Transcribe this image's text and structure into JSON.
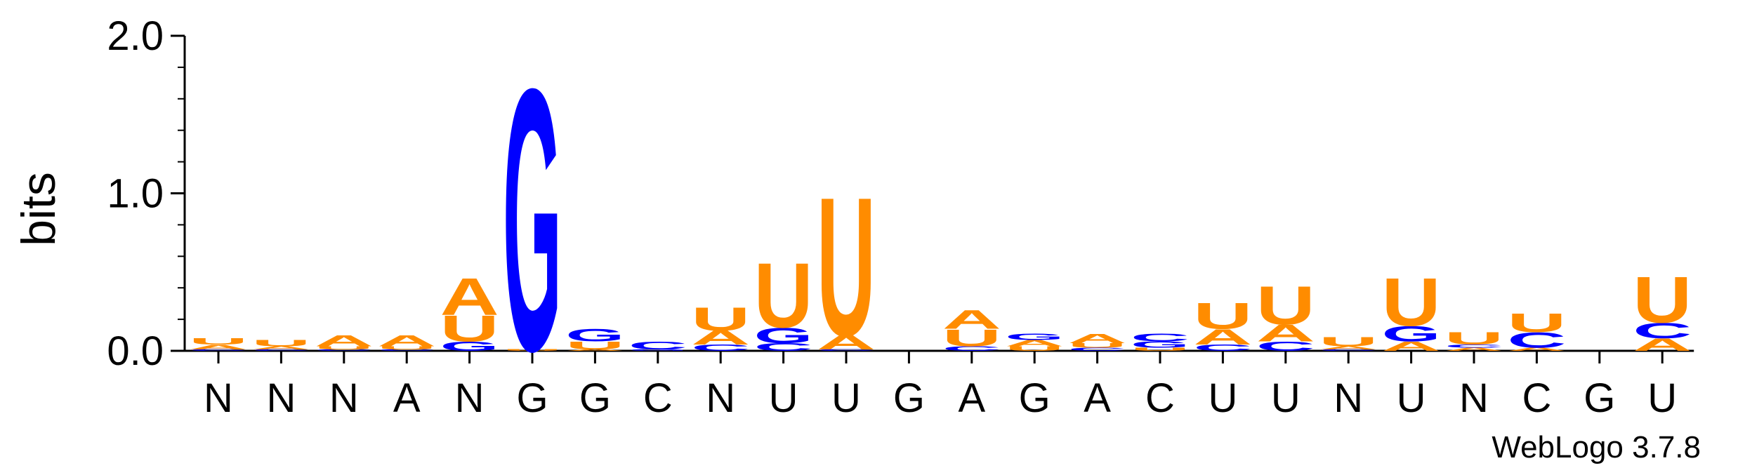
{
  "chart_data": {
    "type": "sequence-logo",
    "ylabel": "bits",
    "ylim": [
      0,
      2.0
    ],
    "yticks": [
      {
        "value": 0.0,
        "label": "0.0"
      },
      {
        "value": 1.0,
        "label": "1.0"
      },
      {
        "value": 2.0,
        "label": "2.0"
      }
    ],
    "x_labels": [
      "N",
      "N",
      "N",
      "A",
      "N",
      "G",
      "G",
      "C",
      "N",
      "U",
      "U",
      "G",
      "A",
      "G",
      "A",
      "C",
      "U",
      "U",
      "N",
      "U",
      "N",
      "C",
      "G",
      "U"
    ],
    "colors": {
      "A": "#FF8C00",
      "U": "#FF8C00",
      "G": "#0000FF",
      "C": "#0000FF"
    },
    "positions": [
      {
        "pos": 1,
        "stack": [
          {
            "letter": "U",
            "height": 0.04
          },
          {
            "letter": "A",
            "height": 0.03
          },
          {
            "letter": "C",
            "height": 0.01
          }
        ]
      },
      {
        "pos": 2,
        "stack": [
          {
            "letter": "U",
            "height": 0.04
          },
          {
            "letter": "A",
            "height": 0.02
          },
          {
            "letter": "C",
            "height": 0.01
          }
        ]
      },
      {
        "pos": 3,
        "stack": [
          {
            "letter": "A",
            "height": 0.07
          },
          {
            "letter": "U",
            "height": 0.02
          },
          {
            "letter": "C",
            "height": 0.01
          }
        ]
      },
      {
        "pos": 4,
        "stack": [
          {
            "letter": "A",
            "height": 0.07
          },
          {
            "letter": "U",
            "height": 0.02
          },
          {
            "letter": "C",
            "height": 0.01
          }
        ]
      },
      {
        "pos": 5,
        "stack": [
          {
            "letter": "A",
            "height": 0.24
          },
          {
            "letter": "U",
            "height": 0.17
          },
          {
            "letter": "G",
            "height": 0.06
          }
        ]
      },
      {
        "pos": 6,
        "stack": [
          {
            "letter": "G",
            "height": 1.7
          },
          {
            "letter": "U",
            "height": 0.01
          }
        ]
      },
      {
        "pos": 7,
        "stack": [
          {
            "letter": "G",
            "height": 0.08
          },
          {
            "letter": "U",
            "height": 0.05
          },
          {
            "letter": "A",
            "height": 0.01
          }
        ]
      },
      {
        "pos": 8,
        "stack": [
          {
            "letter": "C",
            "height": 0.05
          },
          {
            "letter": "G",
            "height": 0.01
          }
        ]
      },
      {
        "pos": 9,
        "stack": [
          {
            "letter": "U",
            "height": 0.15
          },
          {
            "letter": "A",
            "height": 0.09
          },
          {
            "letter": "C",
            "height": 0.04
          }
        ]
      },
      {
        "pos": 10,
        "stack": [
          {
            "letter": "U",
            "height": 0.42
          },
          {
            "letter": "G",
            "height": 0.1
          },
          {
            "letter": "C",
            "height": 0.05
          }
        ]
      },
      {
        "pos": 11,
        "stack": [
          {
            "letter": "U",
            "height": 0.9
          },
          {
            "letter": "A",
            "height": 0.09
          },
          {
            "letter": "C",
            "height": 0.01
          }
        ]
      },
      {
        "pos": 12,
        "stack": []
      },
      {
        "pos": 13,
        "stack": [
          {
            "letter": "A",
            "height": 0.12
          },
          {
            "letter": "U",
            "height": 0.11
          },
          {
            "letter": "C",
            "height": 0.03
          }
        ]
      },
      {
        "pos": 14,
        "stack": [
          {
            "letter": "G",
            "height": 0.04
          },
          {
            "letter": "A",
            "height": 0.04
          },
          {
            "letter": "U",
            "height": 0.03
          }
        ]
      },
      {
        "pos": 15,
        "stack": [
          {
            "letter": "A",
            "height": 0.06
          },
          {
            "letter": "U",
            "height": 0.03
          },
          {
            "letter": "C",
            "height": 0.02
          }
        ]
      },
      {
        "pos": 16,
        "stack": [
          {
            "letter": "C",
            "height": 0.05
          },
          {
            "letter": "G",
            "height": 0.04
          },
          {
            "letter": "U",
            "height": 0.02
          }
        ]
      },
      {
        "pos": 17,
        "stack": [
          {
            "letter": "U",
            "height": 0.17
          },
          {
            "letter": "A",
            "height": 0.1
          },
          {
            "letter": "C",
            "height": 0.04
          }
        ]
      },
      {
        "pos": 18,
        "stack": [
          {
            "letter": "U",
            "height": 0.25
          },
          {
            "letter": "A",
            "height": 0.11
          },
          {
            "letter": "C",
            "height": 0.06
          }
        ]
      },
      {
        "pos": 19,
        "stack": [
          {
            "letter": "U",
            "height": 0.06
          },
          {
            "letter": "A",
            "height": 0.02
          },
          {
            "letter": "C",
            "height": 0.01
          }
        ]
      },
      {
        "pos": 20,
        "stack": [
          {
            "letter": "U",
            "height": 0.31
          },
          {
            "letter": "G",
            "height": 0.1
          },
          {
            "letter": "A",
            "height": 0.06
          }
        ]
      },
      {
        "pos": 21,
        "stack": [
          {
            "letter": "U",
            "height": 0.08
          },
          {
            "letter": "C",
            "height": 0.02
          },
          {
            "letter": "A",
            "height": 0.02
          }
        ]
      },
      {
        "pos": 22,
        "stack": [
          {
            "letter": "U",
            "height": 0.12
          },
          {
            "letter": "C",
            "height": 0.1
          },
          {
            "letter": "A",
            "height": 0.02
          }
        ]
      },
      {
        "pos": 23,
        "stack": []
      },
      {
        "pos": 24,
        "stack": [
          {
            "letter": "U",
            "height": 0.3
          },
          {
            "letter": "C",
            "height": 0.1
          },
          {
            "letter": "A",
            "height": 0.08
          }
        ]
      }
    ]
  },
  "footer": {
    "credit": "WebLogo 3.7.8"
  }
}
